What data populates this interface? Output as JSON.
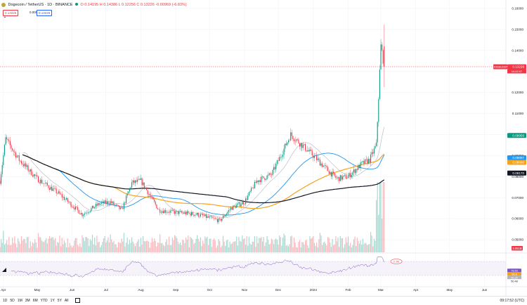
{
  "header": {
    "symbol_title": "Dogecoin / TetherUS · 1D · BINANCE",
    "ohlc": "O 0.14195 H 0.14386 L 0.12256 C 0.13226 -0.00969 (-6.83%)",
    "sell_price": "0.13225",
    "spread": "0.00001",
    "buy_price": "0.13226",
    "collapse_glyph": "⌃"
  },
  "bottom_bar": {
    "ranges": [
      "1D",
      "5D",
      "1M",
      "3M",
      "6M",
      "YTD",
      "1Y",
      "5Y",
      "All"
    ],
    "time": "09:17:52 (UTC)"
  },
  "colors": {
    "up": "#089981",
    "down": "#f23645",
    "ma_blue": "#2196f3",
    "ma_orange": "#f7a21b",
    "ma_gray": "#b2b5be",
    "ma_black": "#131722",
    "rsi": "#7e57c2"
  },
  "chart_data": {
    "type": "candlestick",
    "title": "Dogecoin / TetherUS · 1D · BINANCE",
    "xlabel": "",
    "ylabel": "",
    "x_ticks": [
      "Apr",
      "May",
      "Jun",
      "Jul",
      "Aug",
      "Sep",
      "Oct",
      "Nov",
      "Dec",
      "2024",
      "Feb",
      "Mar",
      "Apr",
      "May",
      "Jun"
    ],
    "y_ticks": [
      "0.16000",
      "0.15000",
      "0.14000",
      "0.13000",
      "0.12000",
      "0.11000",
      "0.10000",
      "0.09000",
      "0.08000",
      "0.07000",
      "0.06000",
      "0.05000"
    ],
    "ylim": [
      0.044,
      0.162
    ],
    "grid": true,
    "close_path": [
      {
        "date": "2023-03-29",
        "close": 0.078
      },
      {
        "date": "2023-04-03",
        "close": 0.098
      },
      {
        "date": "2023-04-15",
        "close": 0.088
      },
      {
        "date": "2023-05-01",
        "close": 0.079
      },
      {
        "date": "2023-05-20",
        "close": 0.072
      },
      {
        "date": "2023-06-10",
        "close": 0.062
      },
      {
        "date": "2023-06-25",
        "close": 0.067
      },
      {
        "date": "2023-07-05",
        "close": 0.068
      },
      {
        "date": "2023-07-15",
        "close": 0.064
      },
      {
        "date": "2023-07-24",
        "close": 0.077
      },
      {
        "date": "2023-08-01",
        "close": 0.078
      },
      {
        "date": "2023-08-17",
        "close": 0.064
      },
      {
        "date": "2023-09-01",
        "close": 0.063
      },
      {
        "date": "2023-09-20",
        "close": 0.062
      },
      {
        "date": "2023-10-10",
        "close": 0.059
      },
      {
        "date": "2023-10-20",
        "close": 0.065
      },
      {
        "date": "2023-11-01",
        "close": 0.068
      },
      {
        "date": "2023-11-12",
        "close": 0.078
      },
      {
        "date": "2023-11-25",
        "close": 0.081
      },
      {
        "date": "2023-12-05",
        "close": 0.092
      },
      {
        "date": "2023-12-12",
        "close": 0.1
      },
      {
        "date": "2023-12-20",
        "close": 0.096
      },
      {
        "date": "2024-01-01",
        "close": 0.09
      },
      {
        "date": "2024-01-12",
        "close": 0.084
      },
      {
        "date": "2024-01-22",
        "close": 0.079
      },
      {
        "date": "2024-02-01",
        "close": 0.08
      },
      {
        "date": "2024-02-13",
        "close": 0.086
      },
      {
        "date": "2024-02-20",
        "close": 0.088
      },
      {
        "date": "2024-02-26",
        "close": 0.095
      },
      {
        "date": "2024-02-28",
        "close": 0.118
      },
      {
        "date": "2024-03-01",
        "close": 0.142
      },
      {
        "date": "2024-03-04",
        "close": 0.133
      }
    ],
    "last_candle": {
      "open": 0.14195,
      "high": 0.14386,
      "low": 0.12256,
      "close": 0.13226
    },
    "moving_averages": [
      {
        "name": "MA",
        "color": "#b2b5be",
        "last": 0.09956
      },
      {
        "name": "MA",
        "color": "#2196f3",
        "last": 0.08897
      },
      {
        "name": "MA",
        "color": "#f7a21b",
        "last": 0.0868
      },
      {
        "name": "MA",
        "color": "#131722",
        "last": 0.0817
      }
    ],
    "price_labels": [
      {
        "label": "DOGEUSDT",
        "value": "0.13226",
        "sub": "14:42:07",
        "color": "#f23645"
      },
      {
        "label": "",
        "value": "0.09956",
        "color": "#089981"
      },
      {
        "label": "",
        "value": "0.08897",
        "color": "#2196f3"
      },
      {
        "label": "",
        "value": "0.08680",
        "color": "#f7a21b"
      },
      {
        "label": "",
        "value": "0.08170",
        "color": "#131722"
      }
    ],
    "volume_label": "3.051B",
    "volume_label2": "2.2B",
    "rsi": {
      "values": [
        "78.69",
        "66.8",
        "66.35",
        "50.48"
      ]
    }
  }
}
